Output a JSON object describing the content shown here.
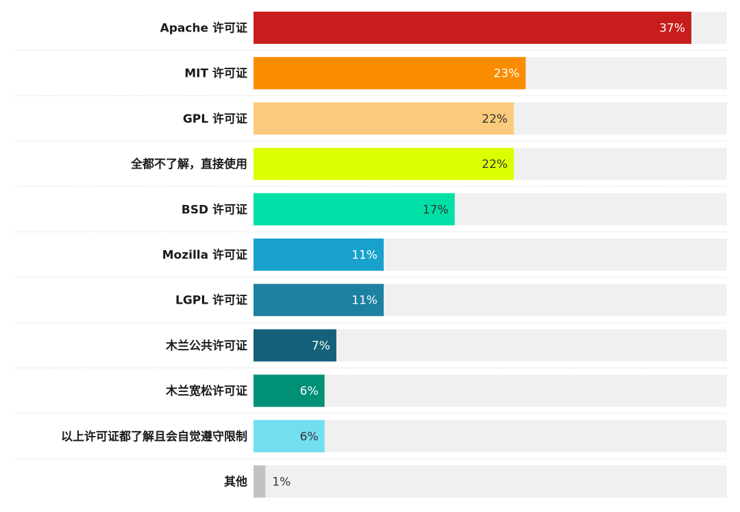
{
  "chart_data": {
    "type": "bar",
    "orientation": "horizontal",
    "categories": [
      "Apache 许可证",
      "MIT 许可证",
      "GPL 许可证",
      "全都不了解，直接使用",
      "BSD 许可证",
      "Mozilla 许可证",
      "LGPL 许可证",
      "木兰公共许可证",
      "木兰宽松许可证",
      "以上许可证都了解且会自觉遵守限制",
      "其他"
    ],
    "values": [
      37,
      23,
      22,
      22,
      17,
      11,
      11,
      7,
      6,
      6,
      1
    ],
    "value_labels": [
      "37%",
      "23%",
      "22%",
      "22%",
      "17%",
      "11%",
      "11%",
      "7%",
      "6%",
      "6%",
      "1%"
    ],
    "xlim": [
      0,
      40
    ],
    "unit": "%",
    "colors": [
      "#c71e1d",
      "#fa8c00",
      "#fbca7c",
      "#dcff00",
      "#00e0a6",
      "#18a1cd",
      "#1d81a2",
      "#15607a",
      "#009076",
      "#72def0",
      "#c2c2c2"
    ],
    "label_colors": [
      "#ffffff",
      "#ffffff",
      "#333333",
      "#333333",
      "#333333",
      "#ffffff",
      "#ffffff",
      "#ffffff",
      "#ffffff",
      "#333333",
      "#333333"
    ],
    "track_color": "#f0f0f0",
    "separator_color": "#c8c8c8",
    "grid": false,
    "legend": "none"
  }
}
